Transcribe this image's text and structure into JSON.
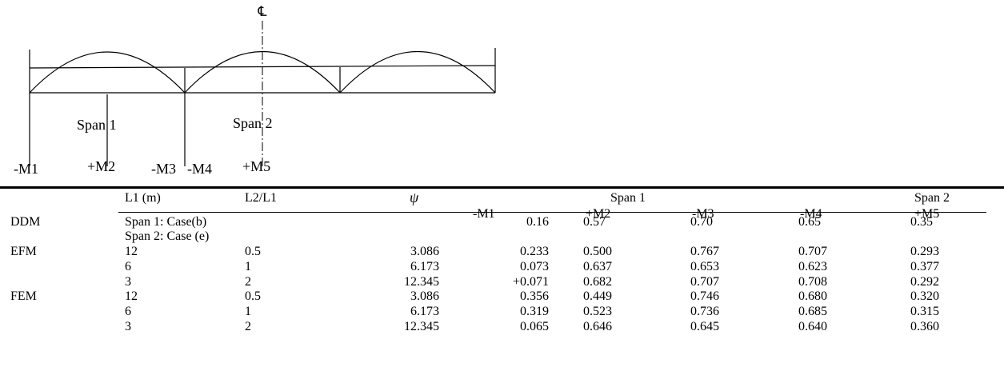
{
  "diagram": {
    "centerline_symbol": "℄",
    "span_labels": [
      "Span 1",
      "Span 2"
    ],
    "moment_labels": [
      "-M1",
      "+M2",
      "-M3",
      "-M4",
      "+M5"
    ]
  },
  "table": {
    "headers": {
      "L1": "L1 (m)",
      "ratio": "L2/L1",
      "psi": "ψ",
      "span1": "Span 1",
      "span2": "Span 2",
      "m1": "-M1",
      "m2": "+M2",
      "m3": "-M3",
      "m4": "-M4",
      "m5": "+M5"
    },
    "ddm": {
      "label": "DDM",
      "case1": "Span 1: Case(b)",
      "case2": "Span 2: Case (e)",
      "values": [
        "0.16",
        "0.57",
        "0.70",
        "0.65",
        "0.35"
      ]
    },
    "groups": [
      {
        "label": "EFM",
        "rows": [
          {
            "L1": "12",
            "ratio": "0.5",
            "psi": "3.086",
            "m1": "0.233",
            "m2": "0.500",
            "m3": "0.767",
            "m4": "0.707",
            "m5": "0.293"
          },
          {
            "L1": "6",
            "ratio": "1",
            "psi": "6.173",
            "m1": "0.073",
            "m2": "0.637",
            "m3": "0.653",
            "m4": "0.623",
            "m5": "0.377"
          },
          {
            "L1": "3",
            "ratio": "2",
            "psi": "12.345",
            "m1": "+0.071",
            "m2": "0.682",
            "m3": "0.707",
            "m4": "0.708",
            "m5": "0.292"
          }
        ]
      },
      {
        "label": "FEM",
        "rows": [
          {
            "L1": "12",
            "ratio": "0.5",
            "psi": "3.086",
            "m1": "0.356",
            "m2": "0.449",
            "m3": "0.746",
            "m4": "0.680",
            "m5": "0.320"
          },
          {
            "L1": "6",
            "ratio": "1",
            "psi": "6.173",
            "m1": "0.319",
            "m2": "0.523",
            "m3": "0.736",
            "m4": "0.685",
            "m5": "0.315"
          },
          {
            "L1": "3",
            "ratio": "2",
            "psi": "12.345",
            "m1": "0.065",
            "m2": "0.646",
            "m3": "0.645",
            "m4": "0.640",
            "m5": "0.360"
          }
        ]
      }
    ]
  }
}
